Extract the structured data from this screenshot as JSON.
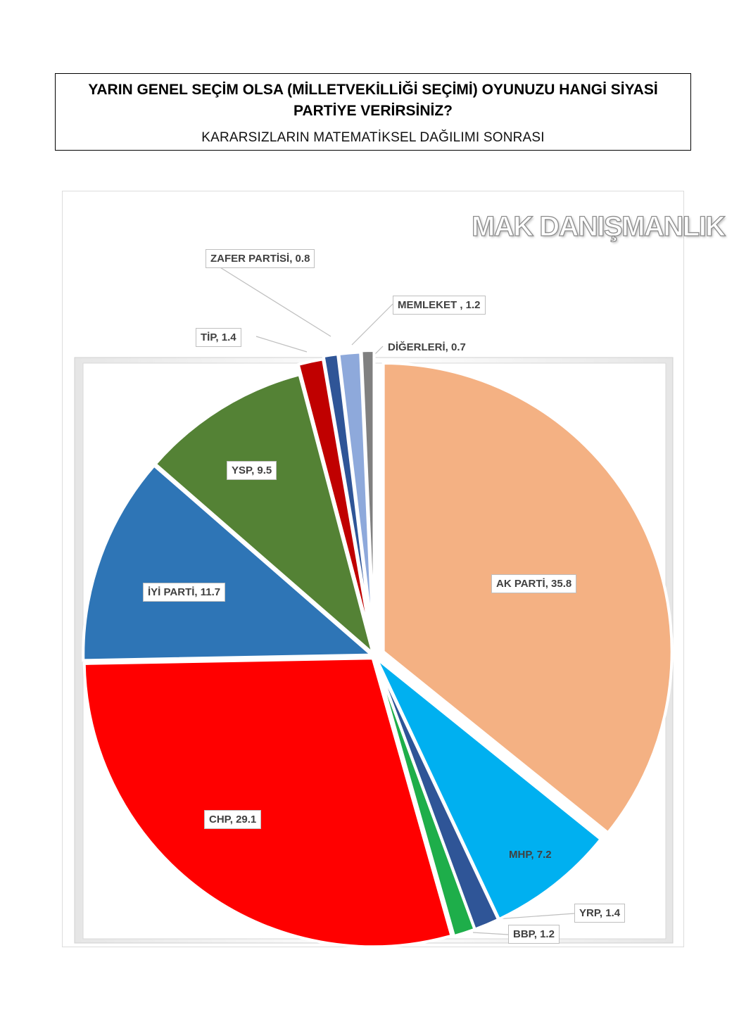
{
  "header": {
    "title": "YARIN GENEL SEÇİM OLSA (MİLLETVEKİLLİĞİ SEÇİMİ) OYUNUZU HANGİ SİYASİ PARTİYE VERİRSİNİZ?",
    "subtitle": "KARARSIZLARIN MATEMATİKSEL DAĞILIMI SONRASI"
  },
  "watermark": "MAK DANIŞMANLIK",
  "chart_data": {
    "type": "pie",
    "slices": [
      {
        "name": "AK PARTİ",
        "value": 35.8,
        "label": "AK PARTİ, 35.8",
        "color": "#F4B183"
      },
      {
        "name": "MHP",
        "value": 7.2,
        "label": "MHP, 7.2",
        "color": "#00B0F0"
      },
      {
        "name": "YRP",
        "value": 1.4,
        "label": "YRP, 1.4",
        "color": "#2F5597"
      },
      {
        "name": "BBP",
        "value": 1.2,
        "label": "BBP, 1.2",
        "color": "#1EAE4A"
      },
      {
        "name": "CHP",
        "value": 29.1,
        "label": "CHP, 29.1",
        "color": "#FF0000"
      },
      {
        "name": "İYİ PARTİ",
        "value": 11.7,
        "label": "İYİ PARTİ, 11.7",
        "color": "#2E75B6"
      },
      {
        "name": "YSP",
        "value": 9.5,
        "label": "YSP, 9.5",
        "color": "#548235"
      },
      {
        "name": "TİP",
        "value": 1.4,
        "label": "TİP, 1.4",
        "color": "#C00000"
      },
      {
        "name": "ZAFER PARTİSİ",
        "value": 0.8,
        "label": "ZAFER PARTİSİ, 0.8",
        "color": "#2F5597"
      },
      {
        "name": "MEMLEKET",
        "value": 1.2,
        "label": "MEMLEKET , 1.2",
        "color": "#8EA9DB"
      },
      {
        "name": "DİĞERLERİ",
        "value": 0.7,
        "label": "DİĞERLERİ, 0.7",
        "color": "#808080"
      }
    ]
  }
}
